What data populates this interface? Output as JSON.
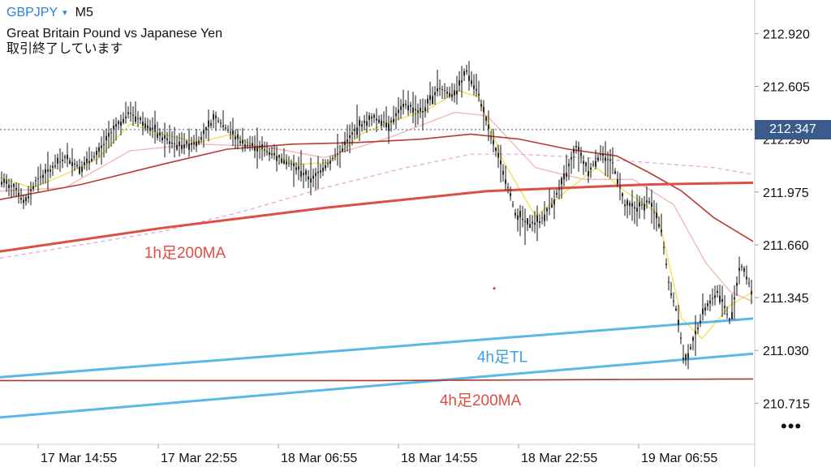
{
  "header": {
    "symbol": "GBPJPY",
    "caret": "▾",
    "timeframe": "M5",
    "instrument_name": "Great Britain Pound vs Japanese Yen",
    "market_status": "取引終了しています"
  },
  "more_menu": "•••",
  "chart_data": {
    "type": "candlestick",
    "title": "",
    "xlabel": "",
    "ylabel": "",
    "ylim": [
      210.47,
      213.12
    ],
    "y_ticks": [
      212.92,
      212.605,
      212.29,
      211.975,
      211.66,
      211.345,
      211.03,
      210.715
    ],
    "y_tick_labels": [
      "212.920",
      "212.605",
      "212.290",
      "211.975",
      "211.660",
      "211.345",
      "211.030",
      "210.715"
    ],
    "x_tick_labels": [
      "17 Mar 14:55",
      "17 Mar 22:55",
      "18 Mar 06:55",
      "18 Mar 14:55",
      "18 Mar 22:55",
      "19 Mar 06:55"
    ],
    "last_price": 212.347,
    "last_price_label": "212.347",
    "price_path": [
      [
        0,
        212.04
      ],
      [
        20,
        212.0
      ],
      [
        30,
        211.9
      ],
      [
        45,
        212.05
      ],
      [
        60,
        212.1
      ],
      [
        80,
        212.18
      ],
      [
        100,
        212.12
      ],
      [
        120,
        212.2
      ],
      [
        140,
        212.35
      ],
      [
        160,
        212.45
      ],
      [
        180,
        212.38
      ],
      [
        200,
        212.3
      ],
      [
        220,
        212.25
      ],
      [
        245,
        212.28
      ],
      [
        265,
        212.42
      ],
      [
        280,
        212.35
      ],
      [
        300,
        212.26
      ],
      [
        320,
        212.24
      ],
      [
        345,
        212.18
      ],
      [
        365,
        212.12
      ],
      [
        385,
        212.05
      ],
      [
        400,
        212.13
      ],
      [
        420,
        212.22
      ],
      [
        440,
        212.36
      ],
      [
        460,
        212.42
      ],
      [
        480,
        212.38
      ],
      [
        500,
        212.5
      ],
      [
        520,
        212.45
      ],
      [
        540,
        212.6
      ],
      [
        560,
        212.55
      ],
      [
        575,
        212.7
      ],
      [
        590,
        212.55
      ],
      [
        605,
        212.3
      ],
      [
        620,
        212.1
      ],
      [
        635,
        211.85
      ],
      [
        650,
        211.78
      ],
      [
        665,
        211.8
      ],
      [
        680,
        211.9
      ],
      [
        695,
        212.05
      ],
      [
        710,
        212.25
      ],
      [
        725,
        212.1
      ],
      [
        740,
        212.2
      ],
      [
        755,
        212.15
      ],
      [
        770,
        211.9
      ],
      [
        785,
        211.88
      ],
      [
        800,
        211.92
      ],
      [
        815,
        211.75
      ],
      [
        825,
        211.4
      ],
      [
        835,
        211.25
      ],
      [
        843,
        210.95
      ],
      [
        855,
        211.1
      ],
      [
        870,
        211.3
      ],
      [
        885,
        211.38
      ],
      [
        900,
        211.2
      ],
      [
        912,
        211.55
      ],
      [
        922,
        211.45
      ],
      [
        928,
        211.35
      ]
    ],
    "series": [
      {
        "name": "",
        "color": "#f0e05a",
        "width": 1.4,
        "points": [
          [
            0,
            212.06
          ],
          [
            40,
            212.0
          ],
          [
            80,
            212.08
          ],
          [
            120,
            212.17
          ],
          [
            160,
            212.38
          ],
          [
            200,
            212.32
          ],
          [
            245,
            212.27
          ],
          [
            285,
            212.32
          ],
          [
            325,
            212.22
          ],
          [
            365,
            212.14
          ],
          [
            405,
            212.15
          ],
          [
            445,
            212.32
          ],
          [
            485,
            212.4
          ],
          [
            525,
            212.46
          ],
          [
            565,
            212.58
          ],
          [
            590,
            212.54
          ],
          [
            620,
            212.16
          ],
          [
            660,
            211.83
          ],
          [
            695,
            211.97
          ],
          [
            735,
            212.12
          ],
          [
            770,
            211.98
          ],
          [
            810,
            211.85
          ],
          [
            840,
            211.22
          ],
          [
            865,
            211.1
          ],
          [
            900,
            211.3
          ],
          [
            928,
            211.38
          ]
        ]
      },
      {
        "name": "",
        "color": "#f4b8b4",
        "width": 1.4,
        "points": [
          [
            0,
            211.98
          ],
          [
            80,
            212.0
          ],
          [
            160,
            212.22
          ],
          [
            240,
            212.26
          ],
          [
            320,
            212.25
          ],
          [
            400,
            212.18
          ],
          [
            480,
            212.3
          ],
          [
            560,
            212.45
          ],
          [
            600,
            212.43
          ],
          [
            660,
            212.12
          ],
          [
            720,
            212.05
          ],
          [
            780,
            212.05
          ],
          [
            830,
            211.9
          ],
          [
            870,
            211.55
          ],
          [
            900,
            211.38
          ],
          [
            928,
            211.32
          ]
        ]
      },
      {
        "name": "",
        "color": "#e6a0e0",
        "width": 1.2,
        "dash": "5,4",
        "points": [
          [
            0,
            211.58
          ],
          [
            100,
            211.66
          ],
          [
            200,
            211.74
          ],
          [
            300,
            211.86
          ],
          [
            400,
            212.0
          ],
          [
            500,
            212.12
          ],
          [
            580,
            212.2
          ],
          [
            640,
            212.2
          ],
          [
            720,
            212.18
          ],
          [
            800,
            212.15
          ],
          [
            880,
            212.12
          ],
          [
            928,
            212.08
          ]
        ]
      },
      {
        "name": "",
        "color": "#b83a30",
        "width": 1.6,
        "points": [
          [
            0,
            211.93
          ],
          [
            100,
            212.02
          ],
          [
            200,
            212.14
          ],
          [
            280,
            212.23
          ],
          [
            360,
            212.26
          ],
          [
            440,
            212.27
          ],
          [
            520,
            212.29
          ],
          [
            580,
            212.32
          ],
          [
            640,
            212.29
          ],
          [
            700,
            212.23
          ],
          [
            760,
            212.19
          ],
          [
            800,
            212.09
          ],
          [
            840,
            211.98
          ],
          [
            880,
            211.82
          ],
          [
            928,
            211.68
          ]
        ]
      },
      {
        "name": "1h足200MA",
        "color": "#dd4e44",
        "width": 3,
        "points": [
          [
            0,
            211.62
          ],
          [
            200,
            211.76
          ],
          [
            400,
            211.88
          ],
          [
            600,
            211.98
          ],
          [
            700,
            212.0
          ],
          [
            800,
            212.02
          ],
          [
            928,
            212.03
          ]
        ]
      },
      {
        "name": "4h足TL",
        "color": "#5bb8e6",
        "width": 3,
        "points": [
          [
            0,
            210.87
          ],
          [
            928,
            211.22
          ]
        ]
      },
      {
        "name": "4h足TL",
        "color": "#5bb8e6",
        "width": 3,
        "points": [
          [
            0,
            210.63
          ],
          [
            928,
            211.01
          ]
        ]
      },
      {
        "name": "4h足200MA",
        "color": "#a8392e",
        "width": 1.6,
        "points": [
          [
            0,
            210.85
          ],
          [
            464,
            210.85
          ],
          [
            928,
            210.86
          ]
        ]
      }
    ],
    "annotations": [
      {
        "text": "1h足200MA",
        "x": 228,
        "y": 211.62,
        "color": "#dd4e44"
      },
      {
        "text": "4h足TL",
        "x": 619,
        "y": 211.0,
        "color": "#3fa0de"
      },
      {
        "text": "4h足200MA",
        "x": 592,
        "y": 210.74,
        "color": "#dd4e44"
      }
    ],
    "marker_dot": {
      "x": 609,
      "y": 211.4,
      "color": "#dd3322"
    }
  }
}
